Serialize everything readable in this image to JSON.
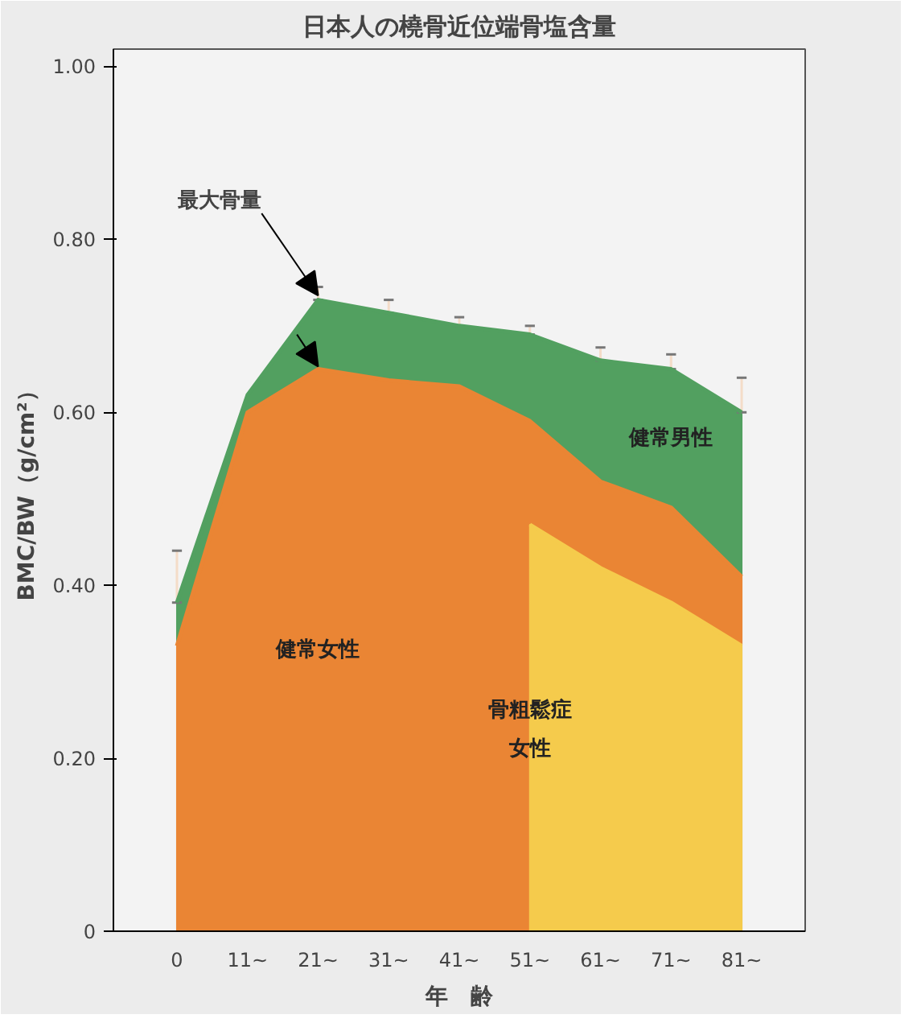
{
  "chart_data": {
    "type": "area",
    "title": "日本人の橈骨近位端骨塩含量",
    "xlabel": "年　齢",
    "ylabel": "BMC/BW（g/cm²）",
    "categories": [
      "0",
      "11~",
      "21~",
      "31~",
      "41~",
      "51~",
      "61~",
      "71~",
      "81~"
    ],
    "series": [
      {
        "name": "健常男性",
        "color": "#52a060",
        "values": [
          0.38,
          0.62,
          0.73,
          0.715,
          0.7,
          0.69,
          0.66,
          0.65,
          0.6
        ],
        "errors": [
          [
            0.38,
            0.44
          ],
          null,
          [
            0.73,
            0.745
          ],
          [
            0.715,
            0.73
          ],
          [
            0.7,
            0.71
          ],
          [
            0.69,
            0.7
          ],
          [
            0.66,
            0.675
          ],
          [
            0.65,
            0.667
          ],
          [
            0.6,
            0.64
          ]
        ]
      },
      {
        "name": "健常女性",
        "color": "#ea8534",
        "values": [
          0.33,
          0.6,
          0.65,
          0.637,
          0.63,
          0.59,
          0.52,
          0.49,
          0.41
        ]
      },
      {
        "name": "骨粗鬆症女性",
        "color": "#f5cb4c",
        "values": [
          null,
          null,
          null,
          null,
          null,
          0.47,
          0.42,
          0.38,
          0.33
        ]
      }
    ],
    "annotations": [
      {
        "text": "最大骨量",
        "x": "21~",
        "y": 0.73
      }
    ],
    "ylim": [
      0,
      1.02
    ],
    "yticks": [
      0,
      {
        "value": 0.2,
        "label": "0.20"
      },
      {
        "value": 0.4,
        "label": "0.40"
      },
      {
        "value": 0.6,
        "label": "0.60"
      },
      {
        "value": 0.8,
        "label": "0.80"
      },
      {
        "value": 1.0,
        "label": "1.00"
      }
    ],
    "grid": false
  }
}
